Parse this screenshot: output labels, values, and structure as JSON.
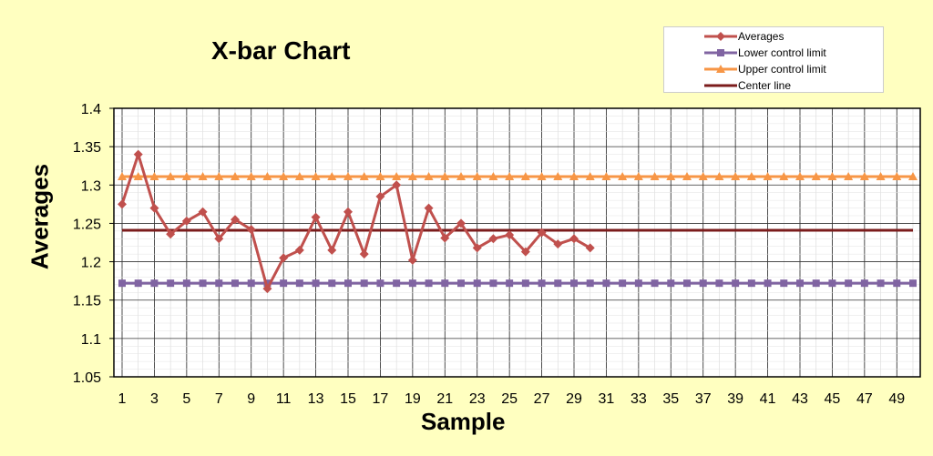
{
  "chart_data": {
    "type": "line",
    "title": "X-bar Chart",
    "xlabel": "Sample",
    "ylabel": "Averages",
    "xlim": [
      1,
      50
    ],
    "ylim": [
      1.05,
      1.4
    ],
    "y_ticks": [
      "1.05",
      "1.1",
      "1.15",
      "1.2",
      "1.25",
      "1.3",
      "1.35",
      "1.4"
    ],
    "x_ticks": [
      "1",
      "3",
      "5",
      "7",
      "9",
      "11",
      "13",
      "15",
      "17",
      "19",
      "21",
      "23",
      "25",
      "27",
      "29",
      "31",
      "33",
      "35",
      "37",
      "39",
      "41",
      "43",
      "45",
      "47",
      "49"
    ],
    "grid": true,
    "legend_position": "top-right",
    "series": [
      {
        "name": "Averages",
        "color": "#c0504d",
        "marker": "diamond",
        "x": [
          1,
          2,
          3,
          4,
          5,
          6,
          7,
          8,
          9,
          10,
          11,
          12,
          13,
          14,
          15,
          16,
          17,
          18,
          19,
          20,
          21,
          22,
          23,
          24,
          25,
          26,
          27,
          28,
          29,
          30
        ],
        "values": [
          1.275,
          1.34,
          1.27,
          1.236,
          1.253,
          1.265,
          1.23,
          1.255,
          1.242,
          1.165,
          1.205,
          1.215,
          1.258,
          1.215,
          1.265,
          1.21,
          1.285,
          1.3,
          1.202,
          1.27,
          1.231,
          1.25,
          1.218,
          1.23,
          1.235,
          1.213,
          1.238,
          1.223,
          1.23,
          1.218
        ]
      },
      {
        "name": "Lower control limit",
        "color": "#8064a2",
        "marker": "square",
        "constant": 1.172,
        "x_start": 1,
        "x_end": 50
      },
      {
        "name": "Upper control limit",
        "color": "#f79646",
        "marker": "triangle",
        "constant": 1.311,
        "x_start": 1,
        "x_end": 50
      },
      {
        "name": "Center line",
        "color": "#7b1c1c",
        "marker": "none",
        "constant": 1.241,
        "x_start": 1,
        "x_end": 50
      }
    ]
  }
}
